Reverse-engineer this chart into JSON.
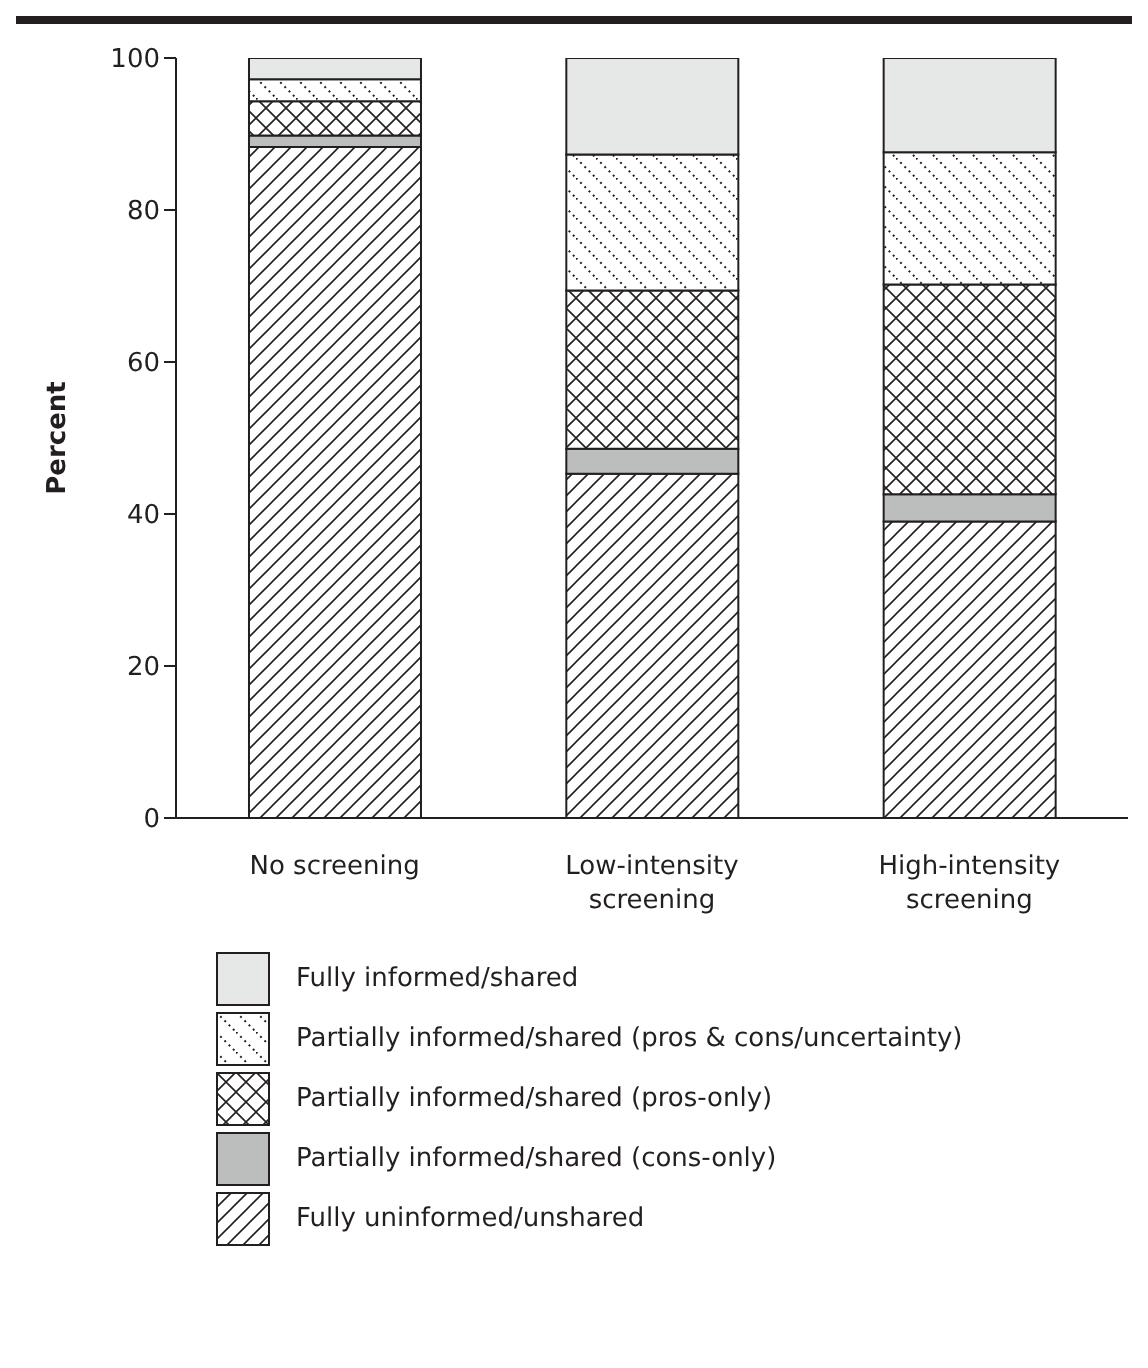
{
  "chart_data": {
    "type": "bar",
    "stacked": true,
    "ylabel": "Percent",
    "categories": [
      "No screening",
      "Low-intensity screening",
      "High-intensity screening"
    ],
    "ylim": [
      0,
      100
    ],
    "yticks": [
      0,
      20,
      40,
      60,
      80,
      100
    ],
    "grid": false,
    "legend": "bottom",
    "series": [
      {
        "name": "Fully uninformed/unshared",
        "color": "#231f20",
        "values": [
          88.3,
          45.3,
          39.0
        ]
      },
      {
        "name": "Partially informed/shared (cons-only)",
        "color": "#bcbdbd",
        "values": [
          1.5,
          3.3,
          3.6
        ]
      },
      {
        "name": "Partially informed/shared (pros-only)",
        "color": "#231f20",
        "values": [
          4.5,
          20.8,
          27.6
        ]
      },
      {
        "name": "Partially informed/shared (pros & cons/uncertainty)",
        "color": "#231f20",
        "values": [
          2.9,
          17.9,
          17.4
        ]
      },
      {
        "name": "Fully informed/shared",
        "color": "#e6e7e7",
        "values": [
          2.8,
          12.7,
          12.4
        ]
      }
    ]
  }
}
